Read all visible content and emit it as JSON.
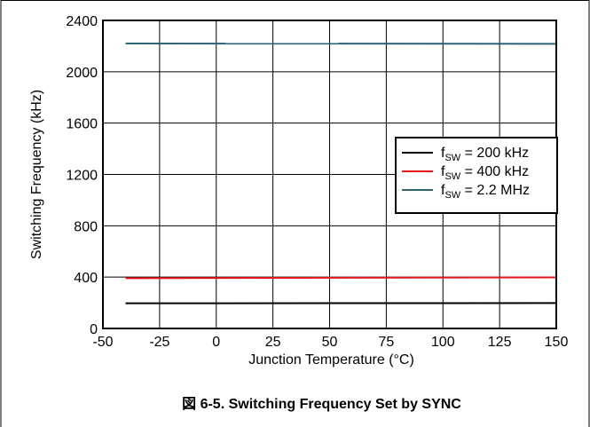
{
  "figure": {
    "caption": "図 6-5. Switching Frequency Set by SYNC"
  },
  "chart_data": {
    "type": "line",
    "title": "",
    "xlabel": "Junction Temperature (°C)",
    "ylabel": "Switching Frequency (kHz)",
    "xlim": [
      -50,
      150
    ],
    "ylim": [
      0,
      2400
    ],
    "xticks": [
      -50,
      -25,
      0,
      25,
      50,
      75,
      100,
      125,
      150
    ],
    "yticks": [
      0,
      400,
      800,
      1200,
      1600,
      2000,
      2400
    ],
    "grid": true,
    "legend_position": "right",
    "series": [
      {
        "name": "fSW = 200 kHz",
        "name_parts": {
          "base": "f",
          "sub": "SW",
          "rest": " = 200 kHz"
        },
        "color": "#000000",
        "x": [
          -40,
          150
        ],
        "y": [
          196,
          198
        ]
      },
      {
        "name": "fSW = 400 kHz",
        "name_parts": {
          "base": "f",
          "sub": "SW",
          "rest": " = 400 kHz"
        },
        "color": "#e8141b",
        "x": [
          -40,
          150
        ],
        "y": [
          392,
          398
        ]
      },
      {
        "name": "fSW = 2.2 MHz",
        "name_parts": {
          "base": "f",
          "sub": "SW",
          "rest": " = 2.2 MHz"
        },
        "color": "#2b6377",
        "x": [
          -40,
          150
        ],
        "y": [
          2220,
          2218
        ]
      }
    ]
  }
}
